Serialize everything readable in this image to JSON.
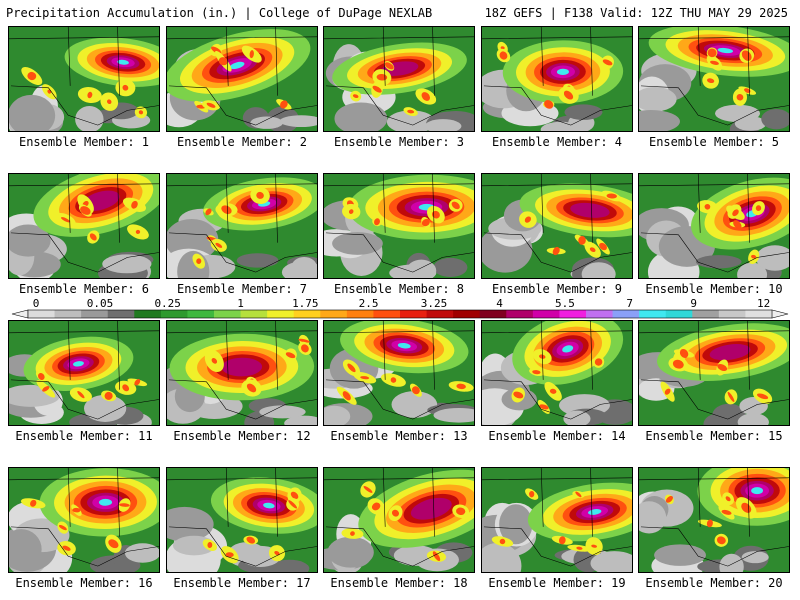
{
  "header": {
    "left": "Precipitation Accumulation (in.) | College of DuPage NEXLAB",
    "right": "18Z GEFS | F138 Valid: 12Z THU MAY 29 2025"
  },
  "members": [
    "Ensemble Member: 1",
    "Ensemble Member: 2",
    "Ensemble Member: 3",
    "Ensemble Member: 4",
    "Ensemble Member: 5",
    "Ensemble Member: 6",
    "Ensemble Member: 7",
    "Ensemble Member: 8",
    "Ensemble Member: 9",
    "Ensemble Member: 10",
    "Ensemble Member: 11",
    "Ensemble Member: 12",
    "Ensemble Member: 13",
    "Ensemble Member: 14",
    "Ensemble Member: 15",
    "Ensemble Member: 16",
    "Ensemble Member: 17",
    "Ensemble Member: 18",
    "Ensemble Member: 19",
    "Ensemble Member: 20"
  ],
  "colorbar": {
    "labels": [
      "0",
      "0.05",
      "0.25",
      "1",
      "1.75",
      "2.5",
      "3.25",
      "4",
      "5.5",
      "7",
      "9",
      "12"
    ],
    "colors": [
      "#dcdcdc",
      "#bdbdbd",
      "#9a9a9a",
      "#6e6e6e",
      "#1f7a1f",
      "#2f9a2f",
      "#3fb83f",
      "#7cd24a",
      "#b6e03c",
      "#f0f02a",
      "#ffd020",
      "#ffa818",
      "#ff8010",
      "#ff5010",
      "#e82010",
      "#c00a0a",
      "#a00000",
      "#800020",
      "#b0006a",
      "#d000a8",
      "#f020e0",
      "#c070f0",
      "#8aa0f8",
      "#40e8f0",
      "#30d8d8",
      "#a0a0a0",
      "#c8c8c8",
      "#e0e0e0"
    ]
  }
}
